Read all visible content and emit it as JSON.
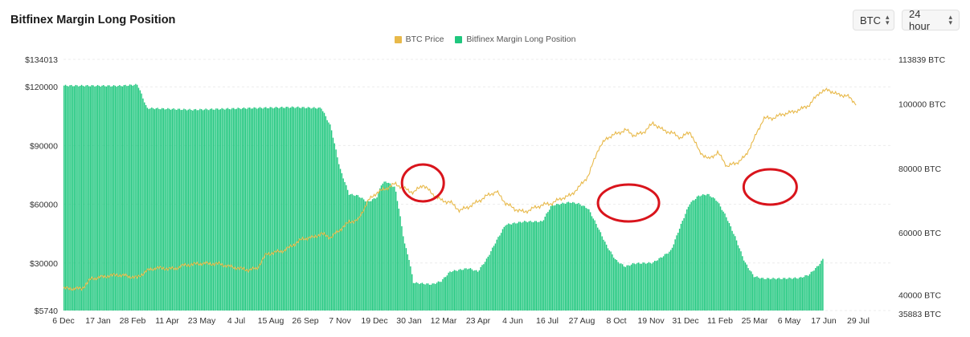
{
  "header": {
    "title": "Bitfinex Margin Long Position",
    "coin_select": "BTC",
    "interval_select": "24 hour"
  },
  "legend": [
    {
      "label": "BTC Price",
      "color": "#e8b94a"
    },
    {
      "label": "Bitfinex Margin Long Position",
      "color": "#1fc77e"
    }
  ],
  "chart_data": {
    "type": "bar+line",
    "categories": [
      "6 Dec",
      "17 Jan",
      "28 Feb",
      "11 Apr",
      "23 May",
      "4 Jul",
      "15 Aug",
      "26 Sep",
      "7 Nov",
      "19 Dec",
      "30 Jan",
      "12 Mar",
      "23 Apr",
      "4 Jun",
      "16 Jul",
      "27 Aug",
      "8 Oct",
      "19 Nov",
      "31 Dec",
      "11 Feb",
      "25 Mar",
      "6 May",
      "17 Jun",
      "29 Jul"
    ],
    "y_left": {
      "ticks": [
        "$134013",
        "$120000",
        "$90000",
        "$60000",
        "$30000",
        "$5740"
      ],
      "range": [
        5740,
        134013
      ]
    },
    "y_right": {
      "ticks": [
        "113839 BTC",
        "100000 BTC",
        "80000 BTC",
        "60000 BTC",
        "40000 BTC",
        "35883 BTC"
      ],
      "range": [
        35883,
        113839
      ]
    },
    "series": [
      {
        "name": "BTC Price",
        "axis": "left",
        "kind": "line",
        "color": "#e8b94a",
        "points": [
          [
            0,
            17000
          ],
          [
            2,
            16900
          ],
          [
            3,
            22000
          ],
          [
            5,
            23500
          ],
          [
            6,
            24000
          ],
          [
            8,
            22500
          ],
          [
            9,
            26000
          ],
          [
            10,
            27500
          ],
          [
            12,
            27000
          ],
          [
            13,
            28800
          ],
          [
            15,
            29800
          ],
          [
            17,
            29500
          ],
          [
            18,
            28200
          ],
          [
            20,
            26500
          ],
          [
            21,
            27200
          ],
          [
            22,
            34500
          ],
          [
            24,
            36500
          ],
          [
            26,
            42500
          ],
          [
            27,
            43000
          ],
          [
            28,
            45000
          ],
          [
            29,
            43000
          ],
          [
            30,
            47000
          ],
          [
            31,
            51000
          ],
          [
            32,
            52000
          ],
          [
            33,
            61500
          ],
          [
            34,
            66000
          ],
          [
            35,
            68000
          ],
          [
            36,
            70500
          ],
          [
            37,
            68000
          ],
          [
            38,
            66000
          ],
          [
            39,
            70000
          ],
          [
            40,
            65500
          ],
          [
            41,
            62000
          ],
          [
            42,
            61000
          ],
          [
            43,
            56800
          ],
          [
            44,
            58800
          ],
          [
            45,
            61500
          ],
          [
            46,
            64500
          ],
          [
            47,
            66500
          ],
          [
            48,
            60500
          ],
          [
            49,
            57500
          ],
          [
            50,
            56000
          ],
          [
            51,
            58000
          ],
          [
            52,
            59700
          ],
          [
            53,
            60500
          ],
          [
            54,
            63000
          ],
          [
            55,
            64500
          ],
          [
            56,
            69000
          ],
          [
            57,
            75000
          ],
          [
            58,
            88000
          ],
          [
            59,
            94000
          ],
          [
            60,
            96000
          ],
          [
            61,
            98000
          ],
          [
            62,
            95000
          ],
          [
            63,
            97000
          ],
          [
            64,
            101500
          ],
          [
            65,
            98000
          ],
          [
            66,
            96500
          ],
          [
            67,
            94000
          ],
          [
            68,
            97000
          ],
          [
            69,
            87000
          ],
          [
            70,
            83000
          ],
          [
            71,
            86500
          ],
          [
            72,
            79500
          ],
          [
            73,
            81000
          ],
          [
            74,
            84500
          ],
          [
            75,
            94000
          ],
          [
            76,
            104000
          ],
          [
            77,
            104000
          ],
          [
            78,
            106000
          ],
          [
            79,
            107000
          ],
          [
            80,
            108500
          ],
          [
            81,
            111000
          ],
          [
            82,
            117000
          ],
          [
            83,
            118500
          ],
          [
            84,
            116000
          ],
          [
            85,
            115500
          ],
          [
            86,
            111500
          ]
        ]
      },
      {
        "name": "Bitfinex Margin Long Position",
        "axis": "right",
        "kind": "bar",
        "color": "#1fc77e",
        "points": [
          [
            0,
            105700
          ],
          [
            6,
            105600
          ],
          [
            8,
            106000
          ],
          [
            8.5,
            102500
          ],
          [
            9,
            98700
          ],
          [
            14,
            98200
          ],
          [
            20,
            98700
          ],
          [
            25,
            99000
          ],
          [
            28,
            98700
          ],
          [
            29,
            93000
          ],
          [
            30,
            80000
          ],
          [
            31,
            72000
          ],
          [
            32,
            71500
          ],
          [
            33,
            69500
          ],
          [
            34,
            71000
          ],
          [
            34.5,
            75000
          ],
          [
            35,
            76000
          ],
          [
            36,
            74000
          ],
          [
            36.5,
            66000
          ],
          [
            37,
            57000
          ],
          [
            37.5,
            52000
          ],
          [
            38,
            44500
          ],
          [
            40,
            44000
          ],
          [
            41,
            45000
          ],
          [
            42,
            48000
          ],
          [
            44,
            49000
          ],
          [
            45,
            48000
          ],
          [
            46,
            52000
          ],
          [
            47,
            57500
          ],
          [
            48,
            62500
          ],
          [
            50,
            63500
          ],
          [
            52,
            63500
          ],
          [
            53,
            68500
          ],
          [
            55,
            69500
          ],
          [
            56,
            69000
          ],
          [
            57,
            67500
          ],
          [
            58,
            62000
          ],
          [
            59,
            56000
          ],
          [
            60,
            51500
          ],
          [
            61,
            49500
          ],
          [
            62,
            50500
          ],
          [
            64,
            50700
          ],
          [
            65,
            52500
          ],
          [
            66,
            54500
          ],
          [
            67,
            62000
          ],
          [
            68,
            69000
          ],
          [
            69,
            71500
          ],
          [
            70,
            72000
          ],
          [
            71,
            70000
          ],
          [
            72,
            65000
          ],
          [
            73,
            58500
          ],
          [
            74,
            51000
          ],
          [
            75,
            46500
          ],
          [
            76,
            45800
          ],
          [
            78,
            45800
          ],
          [
            80,
            46000
          ],
          [
            81,
            47000
          ],
          [
            82,
            49800
          ],
          [
            82.5,
            51800
          ]
        ]
      }
    ],
    "annotations": [
      {
        "shape": "ellipse",
        "color": "#d9141c",
        "near": "30 Jan"
      },
      {
        "shape": "ellipse",
        "color": "#d9141c",
        "near": "8 Oct"
      },
      {
        "shape": "ellipse",
        "color": "#d9141c",
        "near": "25 Mar"
      }
    ]
  }
}
